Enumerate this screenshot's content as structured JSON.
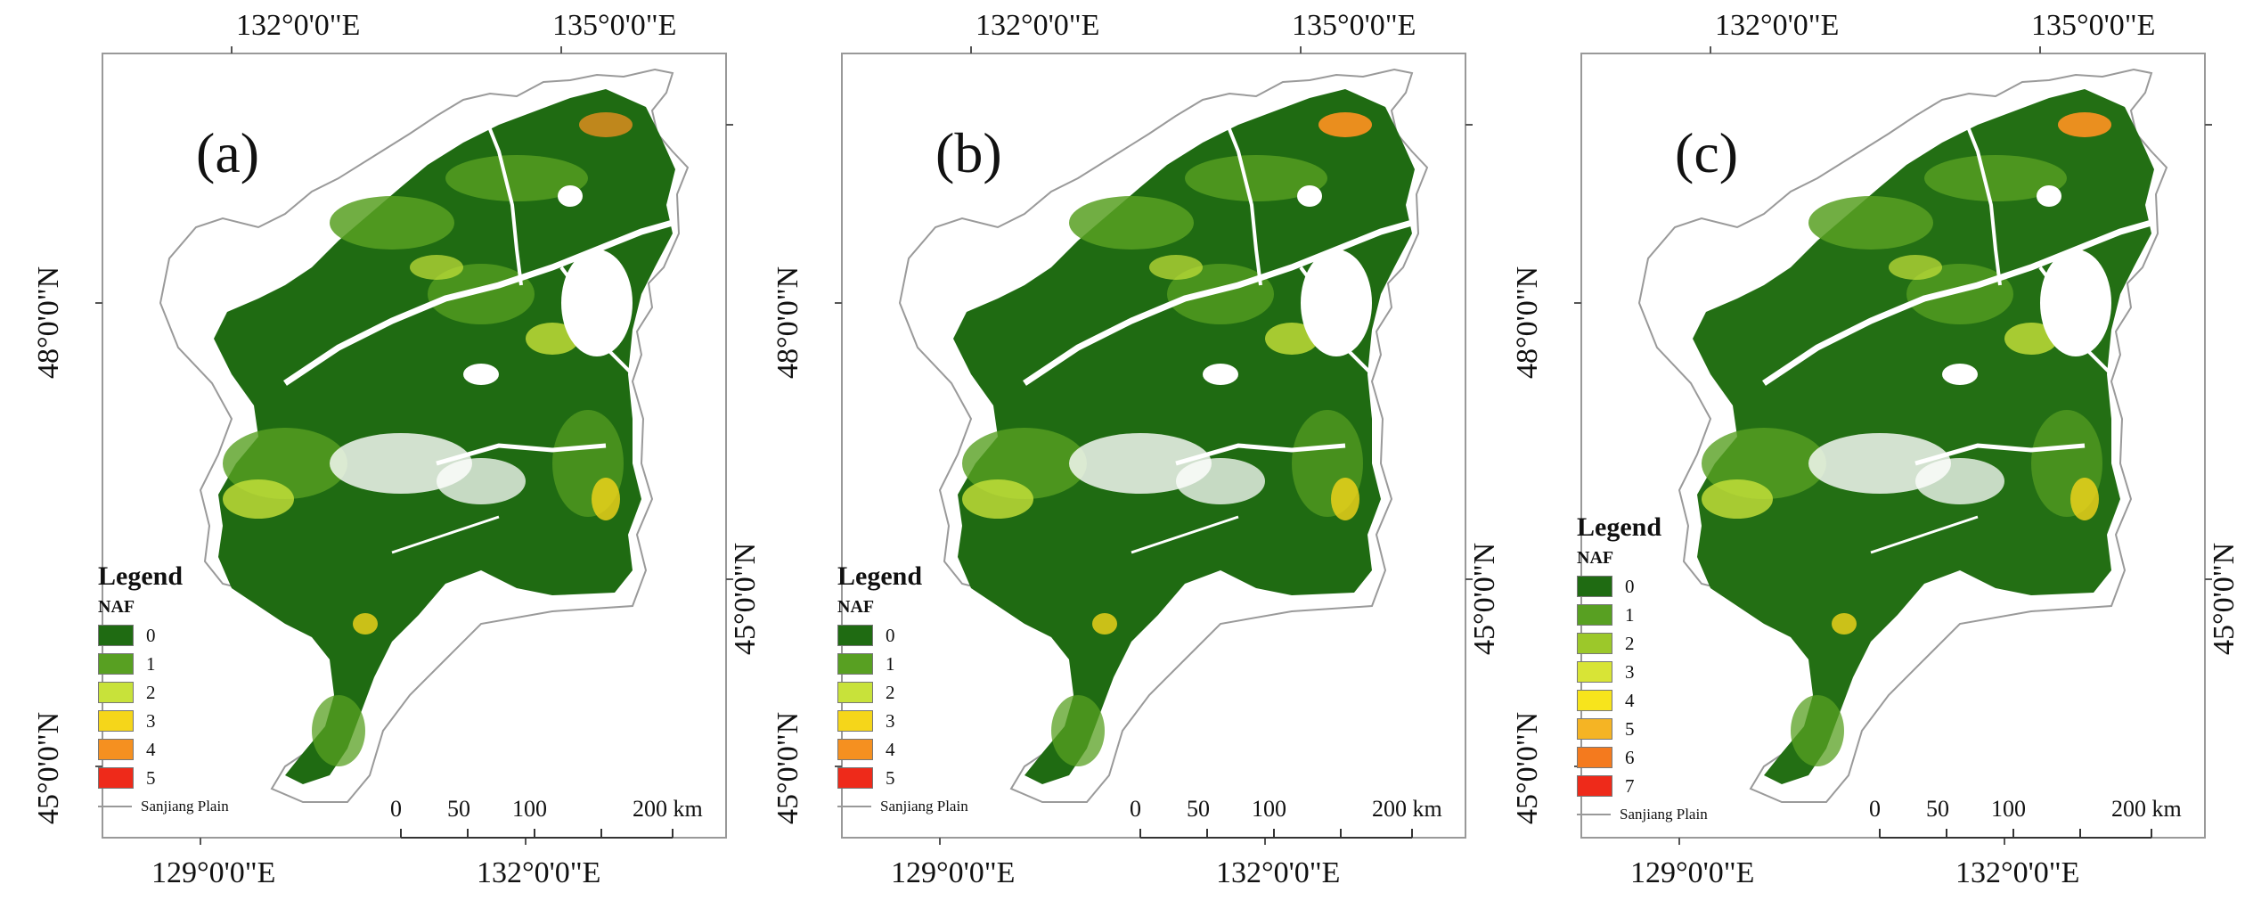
{
  "panels": [
    {
      "label": "(a)",
      "top_lon_labels": [
        "132°0'0\"E",
        "135°0'0\"E"
      ],
      "bottom_lon_labels": [
        "129°0'0\"E",
        "132°0'0\"E"
      ],
      "left_lat_labels": [
        "48°0'0\"N",
        "45°0'0\"N"
      ],
      "right_lat_labels": [
        "45°0'0\"N"
      ],
      "legend_title": "Legend",
      "legend_field": "NAF",
      "classes": [
        {
          "label": "0",
          "color": "#1f6b12"
        },
        {
          "label": "1",
          "color": "#58a022"
        },
        {
          "label": "2",
          "color": "#c8e23a"
        },
        {
          "label": "3",
          "color": "#f5d61a"
        },
        {
          "label": "4",
          "color": "#f59020"
        },
        {
          "label": "5",
          "color": "#ee2a1a"
        }
      ],
      "boundary_label": "Sanjiang Plain",
      "scale_labels": [
        "0",
        "50",
        "100",
        "200 km"
      ]
    },
    {
      "label": "(b)",
      "top_lon_labels": [
        "132°0'0\"E",
        "135°0'0\"E"
      ],
      "bottom_lon_labels": [
        "129°0'0\"E",
        "132°0'0\"E"
      ],
      "left_lat_labels": [
        "48°0'0\"N",
        "45°0'0\"N"
      ],
      "right_lat_labels": [
        "45°0'0\"N"
      ],
      "legend_title": "Legend",
      "legend_field": "NAF",
      "classes": [
        {
          "label": "0",
          "color": "#1f6b12"
        },
        {
          "label": "1",
          "color": "#58a022"
        },
        {
          "label": "2",
          "color": "#c8e23a"
        },
        {
          "label": "3",
          "color": "#f5d61a"
        },
        {
          "label": "4",
          "color": "#f59020"
        },
        {
          "label": "5",
          "color": "#ee2a1a"
        }
      ],
      "boundary_label": "Sanjiang Plain",
      "scale_labels": [
        "0",
        "50",
        "100",
        "200 km"
      ]
    },
    {
      "label": "(c)",
      "top_lon_labels": [
        "132°0'0\"E",
        "135°0'0\"E"
      ],
      "bottom_lon_labels": [
        "129°0'0\"E",
        "132°0'0\"E"
      ],
      "left_lat_labels": [
        "48°0'0\"N",
        "45°0'0\"N"
      ],
      "right_lat_labels": [
        "45°0'0\"N"
      ],
      "legend_title": "Legend",
      "legend_field": "NAF",
      "classes": [
        {
          "label": "0",
          "color": "#1f6b12"
        },
        {
          "label": "1",
          "color": "#58a022"
        },
        {
          "label": "2",
          "color": "#9cc82a"
        },
        {
          "label": "3",
          "color": "#d8e436"
        },
        {
          "label": "4",
          "color": "#f7e41c"
        },
        {
          "label": "5",
          "color": "#f5b424"
        },
        {
          "label": "6",
          "color": "#f47a1e"
        },
        {
          "label": "7",
          "color": "#ee2a1a"
        }
      ],
      "boundary_label": "Sanjiang Plain",
      "scale_labels": [
        "0",
        "50",
        "100",
        "200 km"
      ]
    }
  ]
}
